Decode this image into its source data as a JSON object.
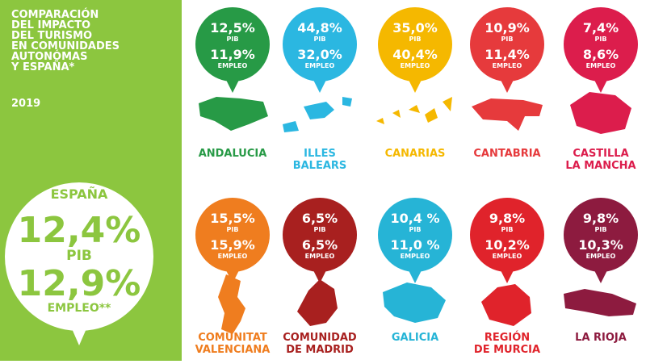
{
  "header": {
    "title_lines": [
      "COMPARACIÓN",
      "DEL IMPACTO",
      "DEL TURISMO",
      "EN COMUNIDADES",
      "AUTONÓMAS",
      "Y ESPAÑA*"
    ],
    "year": "2019"
  },
  "spain": {
    "name": "ESPAÑA",
    "pib": "12,4%",
    "pib_label": "PIB",
    "empleo": "12,9%",
    "empleo_label": "EMPLEO**"
  },
  "labels": {
    "pib": "PIB",
    "empleo": "EMPLEO"
  },
  "regions": [
    {
      "name_lines": [
        "ANDALUCIA"
      ],
      "pib": "12,5%",
      "empleo": "11,9%",
      "color": "#279a46"
    },
    {
      "name_lines": [
        "ILLES",
        "BALEARS"
      ],
      "pib": "44,8%",
      "empleo": "32,0%",
      "color": "#2bb7e1"
    },
    {
      "name_lines": [
        "CANARIAS"
      ],
      "pib": "35,0%",
      "empleo": "40,4%",
      "color": "#f5b800"
    },
    {
      "name_lines": [
        "CANTABRIA"
      ],
      "pib": "10,9%",
      "empleo": "11,4%",
      "color": "#e63a3c"
    },
    {
      "name_lines": [
        "CASTILLA",
        "LA MANCHA"
      ],
      "pib": "7,4%",
      "empleo": "8,6%",
      "color": "#dc1d4c"
    },
    {
      "name_lines": [
        "COMUNITAT",
        "VALENCIANA"
      ],
      "pib": "15,5%",
      "empleo": "15,9%",
      "color": "#ef7d1f"
    },
    {
      "name_lines": [
        "COMUNIDAD",
        "DE MADRID"
      ],
      "pib": "6,5%",
      "empleo": "6,5%",
      "color": "#a8201f"
    },
    {
      "name_lines": [
        "GALICIA"
      ],
      "pib": "10,4 %",
      "empleo": "11,0 %",
      "color": "#26b4d6"
    },
    {
      "name_lines": [
        "REGIÓN",
        "DE MURCIA"
      ],
      "pib": "9,8%",
      "empleo": "10,2%",
      "color": "#e0232b"
    },
    {
      "name_lines": [
        "LA RIOJA"
      ],
      "pib": "9,8%",
      "empleo": "10,3%",
      "color": "#8d1b3f"
    }
  ]
}
